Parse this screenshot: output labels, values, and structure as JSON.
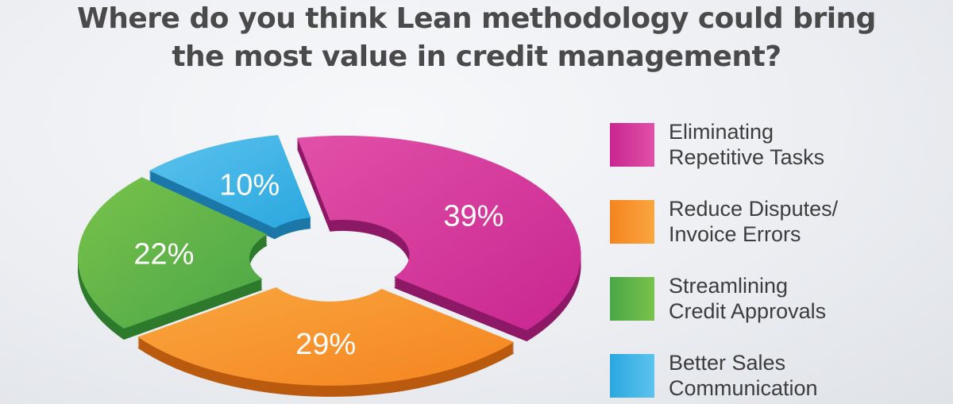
{
  "chart_data": {
    "type": "pie",
    "title": [
      "Where do you think Lean methodology could bring",
      "the most value in credit management?"
    ],
    "slices": [
      {
        "label_lines": [
          "Eliminating",
          "Repetitive Tasks"
        ],
        "value": 39,
        "value_label": "39%",
        "color": "#c8268f",
        "color_light": "#e150a8",
        "color_side": "#8d1866"
      },
      {
        "label_lines": [
          "Reduce Disputes/",
          "Invoice Errors"
        ],
        "value": 29,
        "value_label": "29%",
        "color": "#f5841f",
        "color_light": "#f9a63f",
        "color_side": "#b95a0e"
      },
      {
        "label_lines": [
          "Streamlining",
          "Credit Approvals"
        ],
        "value": 22,
        "value_label": "22%",
        "color": "#4aa648",
        "color_light": "#79c24a",
        "color_side": "#2e7a2d"
      },
      {
        "label_lines": [
          "Better Sales",
          "Communication"
        ],
        "value": 10,
        "value_label": "10%",
        "color": "#2aa7df",
        "color_light": "#5cc3ee",
        "color_side": "#1a77a8"
      }
    ],
    "legend_position": "right"
  }
}
